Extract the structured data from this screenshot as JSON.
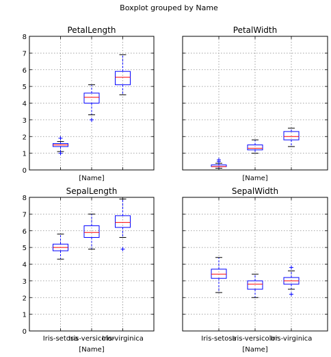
{
  "suptitle": "Boxplot grouped by Name",
  "xlabel": "[Name]",
  "categories": [
    "Iris-setosa",
    "Iris-versicolor",
    "Iris-virginica"
  ],
  "yticks": [
    "0",
    "1",
    "2",
    "3",
    "4",
    "5",
    "6",
    "7",
    "8"
  ],
  "colors": {
    "box": "#0000ff",
    "median": "#ff0000",
    "whisker": "#0000ff",
    "outlier": "#0000ff",
    "cap": "#000000",
    "grid": "#888888",
    "axis": "#000000"
  },
  "chart_data": [
    {
      "type": "box",
      "title": "PetalLength",
      "xlabel": "[Name]",
      "xticks_visible": false,
      "yticks_visible": true,
      "ylim": [
        0,
        8
      ],
      "grid": true,
      "categories": [
        "Iris-setosa",
        "Iris-versicolor",
        "Iris-virginica"
      ],
      "boxes": [
        {
          "whislo": 1.1,
          "q1": 1.4,
          "med": 1.5,
          "q3": 1.58,
          "whishi": 1.7,
          "fliers": [
            1.0,
            1.9
          ]
        },
        {
          "whislo": 3.3,
          "q1": 4.0,
          "med": 4.35,
          "q3": 4.6,
          "whishi": 5.1,
          "fliers": [
            3.0
          ]
        },
        {
          "whislo": 4.5,
          "q1": 5.1,
          "med": 5.55,
          "q3": 5.9,
          "whishi": 6.9,
          "fliers": []
        }
      ]
    },
    {
      "type": "box",
      "title": "PetalWidth",
      "xlabel": "[Name]",
      "xticks_visible": false,
      "yticks_visible": false,
      "ylim": [
        0,
        8
      ],
      "grid": true,
      "categories": [
        "Iris-setosa",
        "Iris-versicolor",
        "Iris-virginica"
      ],
      "boxes": [
        {
          "whislo": 0.1,
          "q1": 0.2,
          "med": 0.2,
          "q3": 0.3,
          "whishi": 0.4,
          "fliers": [
            0.5,
            0.6
          ]
        },
        {
          "whislo": 1.0,
          "q1": 1.2,
          "med": 1.3,
          "q3": 1.5,
          "whishi": 1.8,
          "fliers": []
        },
        {
          "whislo": 1.4,
          "q1": 1.8,
          "med": 2.0,
          "q3": 2.3,
          "whishi": 2.5,
          "fliers": []
        }
      ]
    },
    {
      "type": "box",
      "title": "SepalLength",
      "xlabel": "[Name]",
      "xticks_visible": true,
      "yticks_visible": true,
      "ylim": [
        0,
        8
      ],
      "grid": true,
      "categories": [
        "Iris-setosa",
        "Iris-versicolor",
        "Iris-virginica"
      ],
      "boxes": [
        {
          "whislo": 4.3,
          "q1": 4.8,
          "med": 5.0,
          "q3": 5.2,
          "whishi": 5.8,
          "fliers": []
        },
        {
          "whislo": 4.9,
          "q1": 5.6,
          "med": 5.9,
          "q3": 6.3,
          "whishi": 7.0,
          "fliers": []
        },
        {
          "whislo": 5.6,
          "q1": 6.2,
          "med": 6.5,
          "q3": 6.9,
          "whishi": 7.9,
          "fliers": [
            4.9
          ]
        }
      ]
    },
    {
      "type": "box",
      "title": "SepalWidth",
      "xlabel": "[Name]",
      "xticks_visible": true,
      "yticks_visible": false,
      "ylim": [
        0,
        8
      ],
      "grid": true,
      "categories": [
        "Iris-setosa",
        "Iris-versicolor",
        "Iris-virginica"
      ],
      "boxes": [
        {
          "whislo": 2.3,
          "q1": 3.15,
          "med": 3.4,
          "q3": 3.7,
          "whishi": 4.4,
          "fliers": []
        },
        {
          "whislo": 2.0,
          "q1": 2.5,
          "med": 2.8,
          "q3": 3.0,
          "whishi": 3.4,
          "fliers": []
        },
        {
          "whislo": 2.5,
          "q1": 2.8,
          "med": 3.0,
          "q3": 3.2,
          "whishi": 3.6,
          "fliers": [
            2.2,
            3.8
          ]
        }
      ]
    }
  ]
}
